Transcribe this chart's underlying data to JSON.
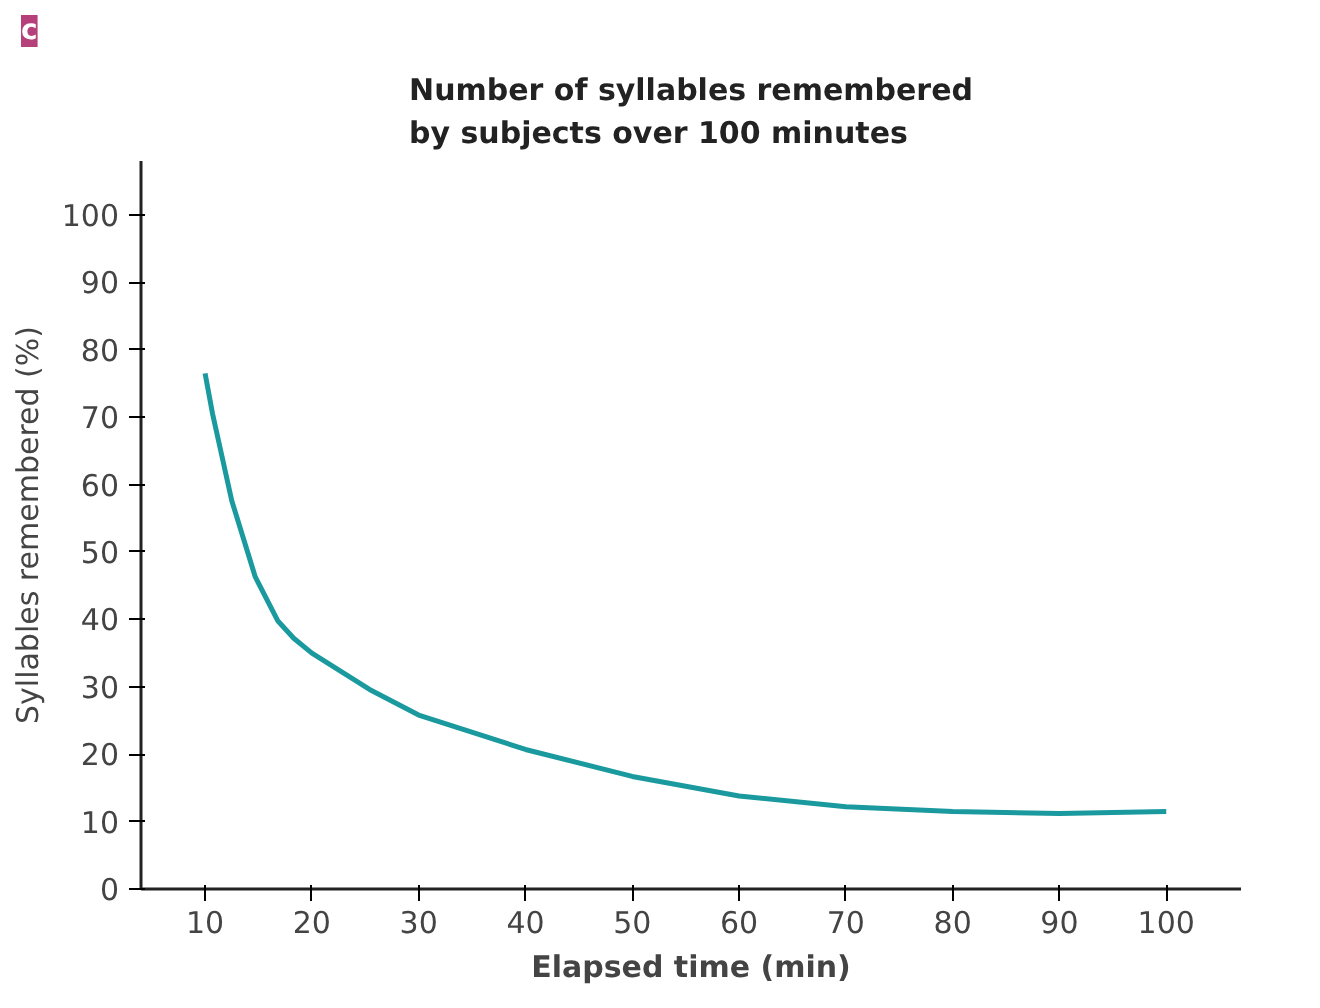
{
  "chart_data": {
    "type": "line",
    "title": "Number of syllables remembered\nby subjects over 100 minutes",
    "xlabel": "Elapsed time (min)",
    "ylabel": "Syllables remembered (%)",
    "annotations": [
      "c"
    ],
    "x": [
      10,
      10.7,
      12.5,
      14.7,
      16.8,
      18.3,
      20,
      25.4,
      30,
      40,
      50,
      60,
      70,
      80,
      90,
      100
    ],
    "series": [
      {
        "color": "#1a9a9e",
        "values": [
          76.5,
          70.5,
          57.6,
          46.3,
          39.8,
          37.2,
          35,
          29.6,
          25.8,
          20.7,
          16.7,
          13.8,
          12.2,
          11.5,
          11.2,
          11.5
        ]
      }
    ],
    "xlim": [
      4,
      107
    ],
    "xticks": [
      10,
      20,
      30,
      40,
      50,
      60,
      70,
      80,
      90,
      100
    ],
    "ylim": [
      0,
      108
    ],
    "yticks": [
      {
        "value": 0,
        "label": "0"
      },
      10,
      20,
      30,
      40,
      50,
      60,
      70,
      80,
      90,
      100
    ],
    "grid": false,
    "marker": "none",
    "line_style": "solid"
  }
}
